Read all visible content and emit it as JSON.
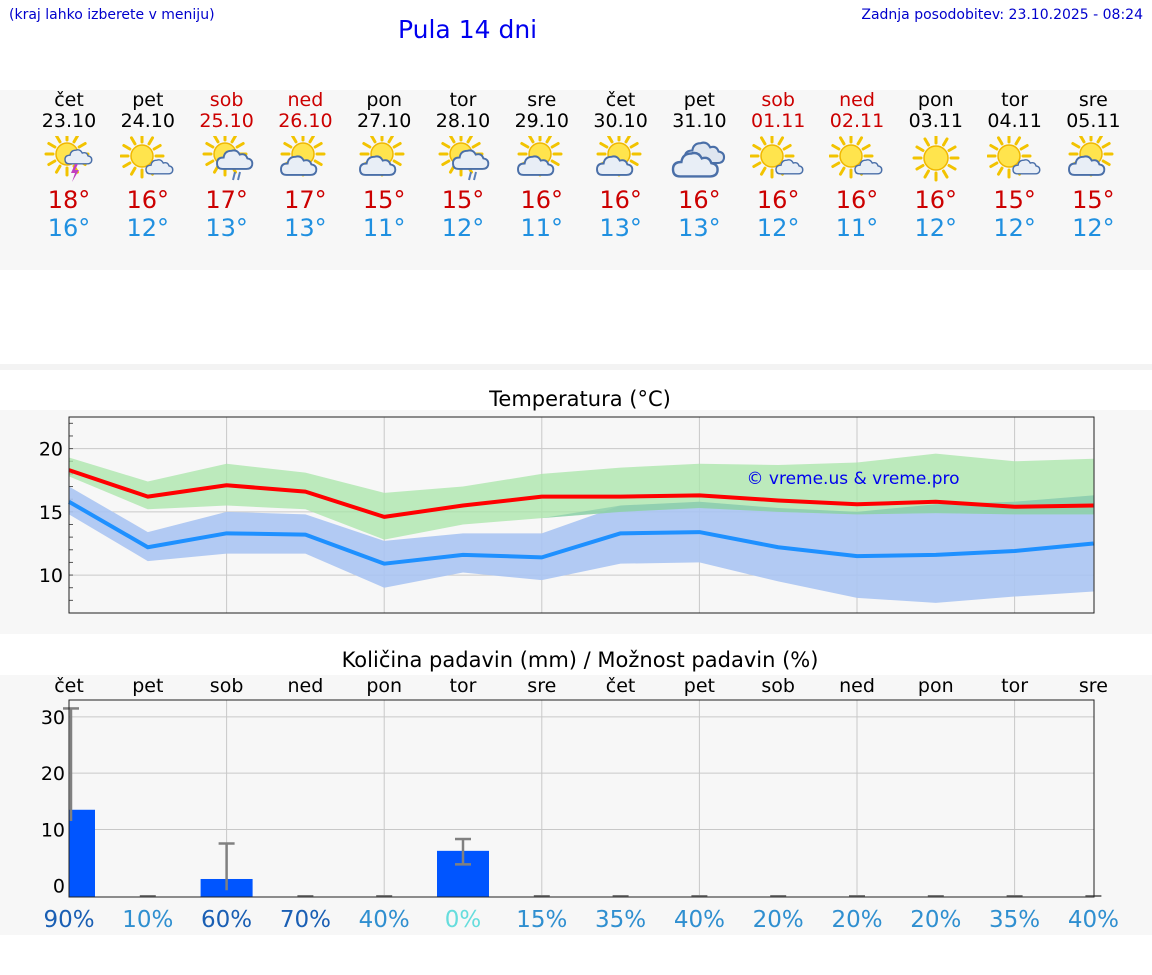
{
  "header": {
    "hint": "(kraj lahko izberete v meniju)",
    "title": "Pula 14 dni",
    "updated": "Zadnja posodobitev: 23.10.2025 - 08:24"
  },
  "days": [
    {
      "weekday": "čet",
      "date": "23.10",
      "icon": "sun-cloud-thunder-icon",
      "tmax": "18°",
      "tmin": "16°",
      "weekend": false
    },
    {
      "weekday": "pet",
      "date": "24.10",
      "icon": "sun-small-cloud-icon",
      "tmax": "16°",
      "tmin": "12°",
      "weekend": false
    },
    {
      "weekday": "sob",
      "date": "25.10",
      "icon": "sun-cloud-rain-icon",
      "tmax": "17°",
      "tmin": "13°",
      "weekend": true
    },
    {
      "weekday": "ned",
      "date": "26.10",
      "icon": "sun-cloud-icon",
      "tmax": "17°",
      "tmin": "13°",
      "weekend": true
    },
    {
      "weekday": "pon",
      "date": "27.10",
      "icon": "sun-cloud-icon",
      "tmax": "15°",
      "tmin": "11°",
      "weekend": false
    },
    {
      "weekday": "tor",
      "date": "28.10",
      "icon": "sun-cloud-rain-icon",
      "tmax": "15°",
      "tmin": "12°",
      "weekend": false
    },
    {
      "weekday": "sre",
      "date": "29.10",
      "icon": "sun-cloud-icon",
      "tmax": "16°",
      "tmin": "11°",
      "weekend": false
    },
    {
      "weekday": "čet",
      "date": "30.10",
      "icon": "sun-cloud-icon",
      "tmax": "16°",
      "tmin": "13°",
      "weekend": false
    },
    {
      "weekday": "pet",
      "date": "31.10",
      "icon": "cloudy-icon",
      "tmax": "16°",
      "tmin": "13°",
      "weekend": false
    },
    {
      "weekday": "sob",
      "date": "01.11",
      "icon": "sun-small-cloud-icon",
      "tmax": "16°",
      "tmin": "12°",
      "weekend": true
    },
    {
      "weekday": "ned",
      "date": "02.11",
      "icon": "sun-small-cloud-icon",
      "tmax": "16°",
      "tmin": "11°",
      "weekend": true
    },
    {
      "weekday": "pon",
      "date": "03.11",
      "icon": "sun-icon",
      "tmax": "16°",
      "tmin": "12°",
      "weekend": false
    },
    {
      "weekday": "tor",
      "date": "04.11",
      "icon": "sun-small-cloud-icon",
      "tmax": "15°",
      "tmin": "12°",
      "weekend": false
    },
    {
      "weekday": "sre",
      "date": "05.11",
      "icon": "sun-cloud-icon",
      "tmax": "15°",
      "tmin": "12°",
      "weekend": false
    }
  ],
  "colors": {
    "max_line": "#ff0000",
    "max_band": "#a8e6a8",
    "min_line": "#1e90ff",
    "min_band": "#aac4f2",
    "overlap_band": "#7cc2a8",
    "bar": "#0055ff",
    "errorbar": "#808080"
  },
  "chart_data": [
    {
      "type": "line",
      "title": "Temperatura (°C)",
      "watermark": "© vreme.us & vreme.pro",
      "ylim": [
        7,
        22.5
      ],
      "yticks": [
        10,
        15,
        20
      ],
      "x": [
        0,
        1,
        2,
        3,
        4,
        5,
        6,
        7,
        8,
        9,
        10,
        11,
        12,
        13
      ],
      "series": [
        {
          "name": "max",
          "values": [
            18.3,
            16.2,
            17.1,
            16.6,
            14.6,
            15.5,
            16.2,
            16.2,
            16.3,
            15.9,
            15.6,
            15.8,
            15.4,
            15.5
          ],
          "band_low": [
            17.8,
            15.2,
            15.5,
            15.2,
            12.8,
            14.0,
            14.5,
            15.0,
            15.3,
            15.0,
            14.8,
            14.9,
            14.8,
            14.8
          ],
          "band_high": [
            19.3,
            17.4,
            18.8,
            18.1,
            16.5,
            17.0,
            18.0,
            18.5,
            18.8,
            18.7,
            18.9,
            19.6,
            19.0,
            19.2
          ]
        },
        {
          "name": "min",
          "values": [
            15.8,
            12.2,
            13.3,
            13.2,
            10.9,
            11.6,
            11.4,
            13.3,
            13.4,
            12.2,
            11.5,
            11.6,
            11.9,
            12.5
          ],
          "band_low": [
            14.8,
            11.1,
            11.7,
            11.7,
            9.0,
            10.2,
            9.6,
            10.9,
            11.0,
            9.5,
            8.2,
            7.8,
            8.3,
            8.7
          ],
          "band_high": [
            17.0,
            13.4,
            15.0,
            14.8,
            12.7,
            13.3,
            13.3,
            15.5,
            15.8,
            15.3,
            15.0,
            15.6,
            15.8,
            16.3
          ]
        }
      ]
    },
    {
      "type": "bar",
      "title": "Količina padavin (mm) / Možnost padavin (%)",
      "categories": [
        "čet",
        "pet",
        "sob",
        "ned",
        "pon",
        "tor",
        "sre",
        "čet",
        "pet",
        "sob",
        "ned",
        "pon",
        "tor",
        "sre"
      ],
      "ylim": [
        -2,
        33
      ],
      "yticks": [
        0,
        10,
        20,
        30
      ],
      "values": [
        13.5,
        0,
        1.2,
        0,
        0,
        6.2,
        0,
        0,
        0,
        0,
        0,
        0,
        0,
        0
      ],
      "error_low": [
        0,
        0,
        0,
        0,
        0,
        3.8,
        0,
        0,
        0,
        0,
        0,
        0,
        0,
        0
      ],
      "error_high": [
        31.5,
        0,
        7.5,
        0,
        0,
        8.3,
        0,
        0,
        0,
        0,
        0,
        0,
        0,
        0
      ],
      "probability": [
        "90%",
        "10%",
        "60%",
        "70%",
        "40%",
        "0%",
        "15%",
        "35%",
        "40%",
        "20%",
        "20%",
        "20%",
        "35%",
        "40%"
      ],
      "probability_colors": [
        "#1a5fb4",
        "#2f8fd0",
        "#1a5fb4",
        "#1a5fb4",
        "#2f8fd0",
        "#66dddd",
        "#2f8fd0",
        "#2f8fd0",
        "#2f8fd0",
        "#2f8fd0",
        "#2f8fd0",
        "#2f8fd0",
        "#2f8fd0",
        "#2f8fd0"
      ]
    }
  ]
}
